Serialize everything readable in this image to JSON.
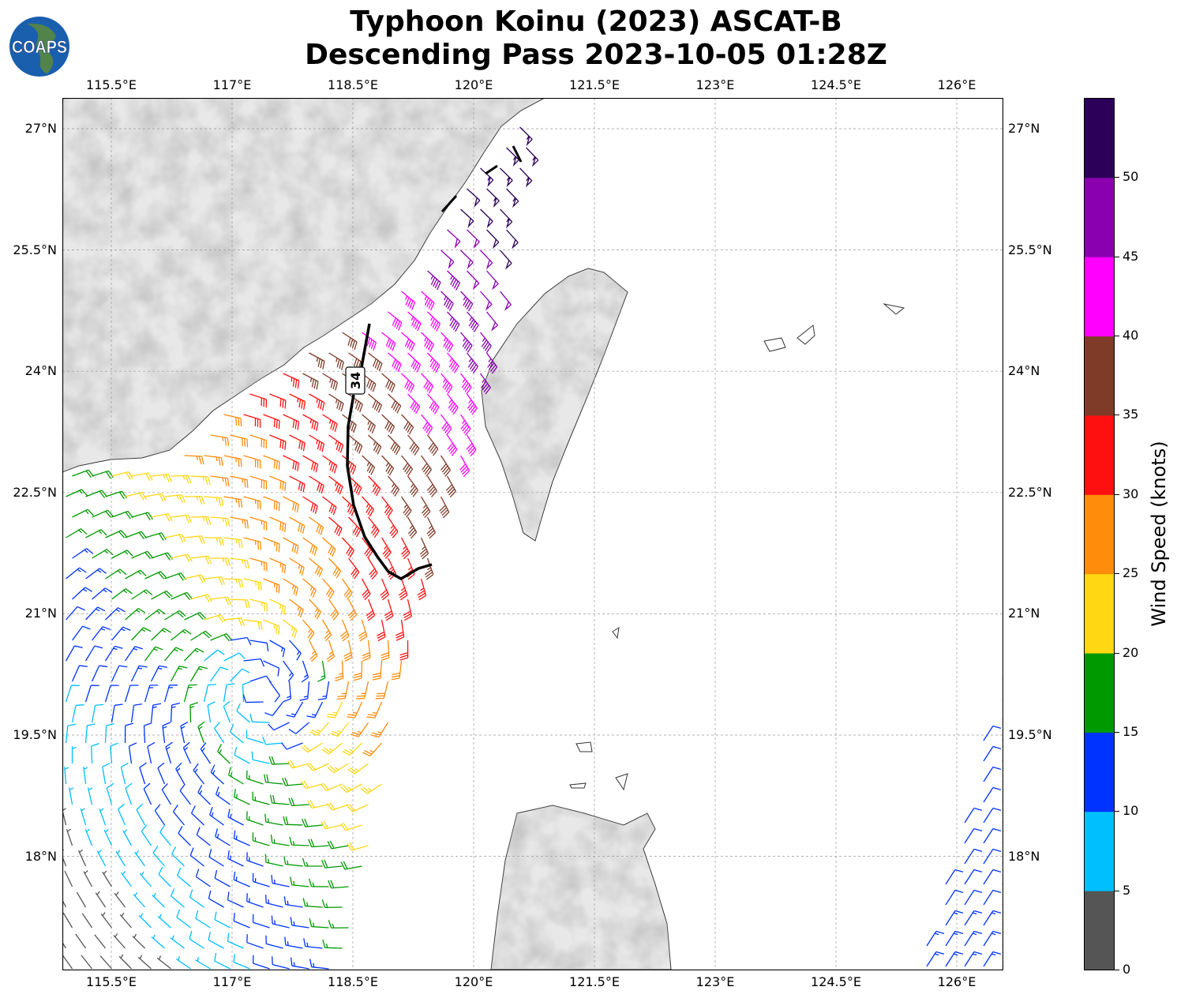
{
  "title": {
    "line1": "Typhoon Koinu (2023) ASCAT-B",
    "line2": "Descending Pass 2023-10-05 01:28Z"
  },
  "logo": {
    "text": "COAPS"
  },
  "axes": {
    "lon_ticks": [
      "115.5°E",
      "117°E",
      "118.5°E",
      "120°E",
      "121.5°E",
      "123°E",
      "124.5°E",
      "126°E"
    ],
    "lat_ticks": [
      "27°N",
      "25.5°N",
      "24°N",
      "22.5°N",
      "21°N",
      "19.5°N",
      "18°N"
    ],
    "gridlines": true
  },
  "contour": {
    "label": "34",
    "color": "#000000"
  },
  "colorbar": {
    "label": "Wind Speed (knots)",
    "tick_labels": [
      "0",
      "5",
      "10",
      "15",
      "20",
      "25",
      "30",
      "35",
      "40",
      "45",
      "50"
    ],
    "bins": [
      0,
      5,
      10,
      15,
      20,
      25,
      30,
      35,
      40,
      45,
      50,
      55
    ],
    "colors": [
      "#555555",
      "#00bfff",
      "#0033ff",
      "#009900",
      "#ffd712",
      "#ff8c0a",
      "#ff1010",
      "#7f3a28",
      "#ff00ff",
      "#8a00b0",
      "#2c0058"
    ]
  },
  "land_color": "#e8e8e8",
  "terrain_color": "#b0b0b0"
}
